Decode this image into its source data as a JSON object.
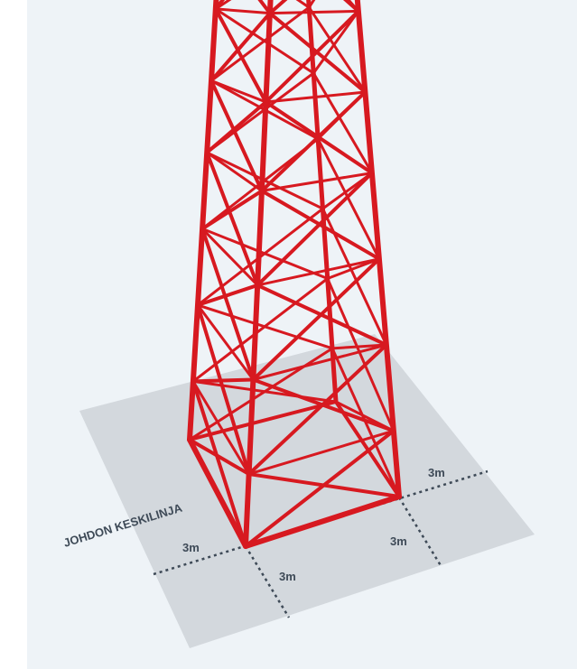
{
  "labels": {
    "centerline": "JOHDON KESKILINJA",
    "distances": [
      "3m",
      "3m",
      "3m",
      "3m"
    ]
  }
}
